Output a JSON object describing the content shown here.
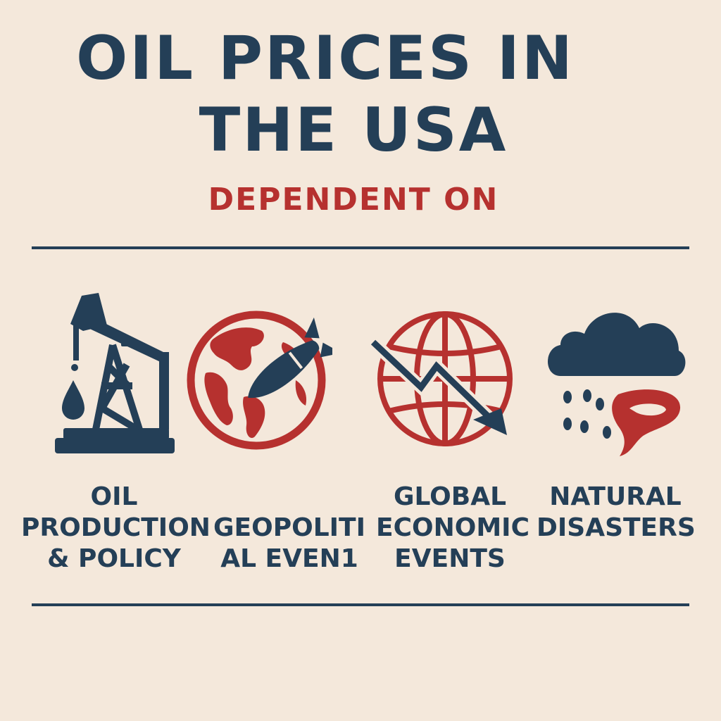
{
  "title_line1": "OIL PRICES IN",
  "title_line2": "THE USA",
  "subtitle": "DEPENDENT ON",
  "colors": {
    "background": "#f4e8db",
    "navy": "#243f57",
    "red": "#b6312f"
  },
  "factors": [
    {
      "icon": "oil-pump-icon",
      "label": "OIL\nPRODUCTION\n& POLICY"
    },
    {
      "icon": "globe-missile-icon",
      "label": "GEOPOLITI\nAL EVEN1"
    },
    {
      "icon": "globe-downtrend-icon",
      "label": "GLOBAL\nECONOMIC\nEVENTS"
    },
    {
      "icon": "storm-cloud-icon",
      "label": "NATURAL\nDISASTERS"
    }
  ]
}
